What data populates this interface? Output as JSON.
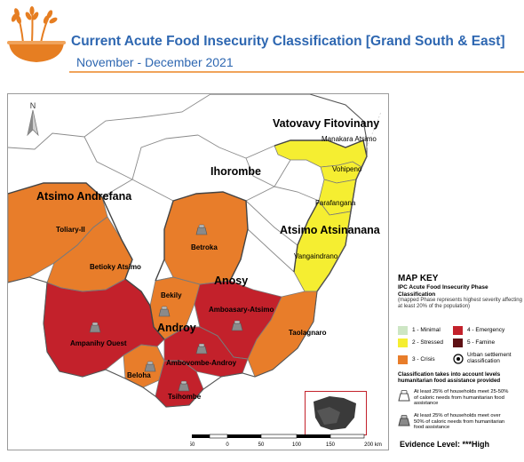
{
  "header": {
    "title": "Current Acute Food Insecurity Classification [Grand South  & East]",
    "subtitle": "November - December 2021"
  },
  "map": {
    "north_label": "N",
    "region_labels": {
      "vatovavy": "Vatovavy Fitovinany",
      "ihorombe": "Ihorombe",
      "atsimo_andrefana": "Atsimo Andrefana",
      "atsimo_atsinanana": "Atsimo Atsinanana",
      "anosy": "Anosy",
      "androy": "Androy"
    },
    "district_labels": {
      "manakara": "Manakara Atsimo",
      "vohipeno": "Vohipeno",
      "farafangana": "Farafangana",
      "vangaindrano": "Vangaindrano",
      "toliary": "Toliary-II",
      "betioky": "Betioky Atsimo",
      "betroka": "Betroka",
      "bekily": "Bekily",
      "amboasary": "Amboasary-Atsimo",
      "ampanihy": "Ampanihy Ouest",
      "taolagnaro": "Taolagnaro",
      "ambovombe": "Ambovombe-Androy",
      "beloha": "Beloha",
      "tsihombe": "Tsihombe"
    },
    "phase_colors": {
      "minimal": "#cde6c4",
      "stressed": "#f5ee31",
      "crisis": "#e87d2a",
      "emergency": "#c3212b",
      "famine": "#5f1115"
    },
    "scale": {
      "ticks": [
        "50",
        "0",
        "50",
        "100",
        "150",
        "200 km"
      ]
    }
  },
  "key": {
    "title": "MAP KEY",
    "subtitle": "IPC Acute Food Insecurity Phase Classification",
    "note": "(mapped Phase represents highest severity affecting at least 20% of the population)",
    "phases": [
      {
        "label": "1 - Minimal",
        "color": "#cde6c4"
      },
      {
        "label": "2 - Stressed",
        "color": "#f5ee31"
      },
      {
        "label": "3 - Crisis",
        "color": "#e87d2a"
      },
      {
        "label": "4 - Emergency",
        "color": "#c3212b"
      },
      {
        "label": "5 - Famine",
        "color": "#5f1115"
      }
    ],
    "urban_label": "Urban settlement classification",
    "assistance_title": "Classification takes into account levels humanitarian food assistance provided",
    "bag_1": "At least 25% of households meet 25-50% of caloric needs from humanitarian food assistance",
    "bag_2": "At least 25% of households meet over 50% of caloric needs from humanitarian food assistance"
  },
  "evidence": "Evidence Level: ***High"
}
